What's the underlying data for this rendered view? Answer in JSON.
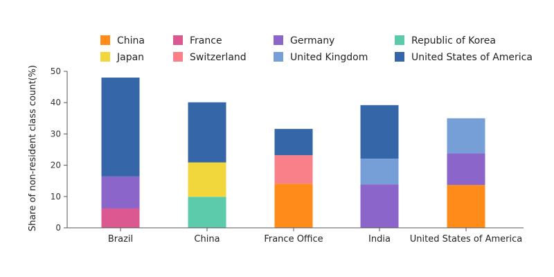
{
  "chart_data": {
    "type": "bar",
    "stacked": true,
    "title": "",
    "xlabel": "",
    "ylabel": "Share of non-resident class count(%)",
    "ylim": [
      0,
      50
    ],
    "yticks": [
      0,
      10,
      20,
      30,
      40,
      50
    ],
    "grid": false,
    "legend_position": "top",
    "categories": [
      "Brazil",
      "China",
      "France Office",
      "India",
      "United States of America"
    ],
    "series": [
      {
        "name": "China",
        "color": "#ff8c1a",
        "values": [
          0,
          0,
          14.1,
          0,
          13.7
        ]
      },
      {
        "name": "Japan",
        "color": "#f2d73c",
        "values": [
          0,
          11.0,
          0,
          0,
          0
        ]
      },
      {
        "name": "France",
        "color": "#dc5891",
        "values": [
          6.2,
          0,
          0,
          0,
          0
        ]
      },
      {
        "name": "Switzerland",
        "color": "#f97f88",
        "values": [
          0,
          0,
          9.1,
          0,
          0
        ]
      },
      {
        "name": "Germany",
        "color": "#8b65c9",
        "values": [
          10.2,
          0,
          0,
          13.9,
          10.1
        ]
      },
      {
        "name": "United Kingdom",
        "color": "#759fd6",
        "values": [
          0,
          0,
          0,
          8.2,
          11.2
        ]
      },
      {
        "name": "Republic of Korea",
        "color": "#5ccbab",
        "values": [
          0,
          9.9,
          0,
          0,
          0
        ]
      },
      {
        "name": "United States of America",
        "color": "#3566a8",
        "values": [
          31.6,
          19.2,
          8.4,
          17.1,
          0
        ]
      }
    ],
    "stack_order": [
      [
        "France",
        "Germany",
        "United States of America"
      ],
      [
        "Republic of Korea",
        "Japan",
        "United States of America"
      ],
      [
        "China",
        "Switzerland",
        "United States of America"
      ],
      [
        "Germany",
        "United Kingdom",
        "United States of America"
      ],
      [
        "China",
        "Germany",
        "United Kingdom"
      ]
    ]
  }
}
